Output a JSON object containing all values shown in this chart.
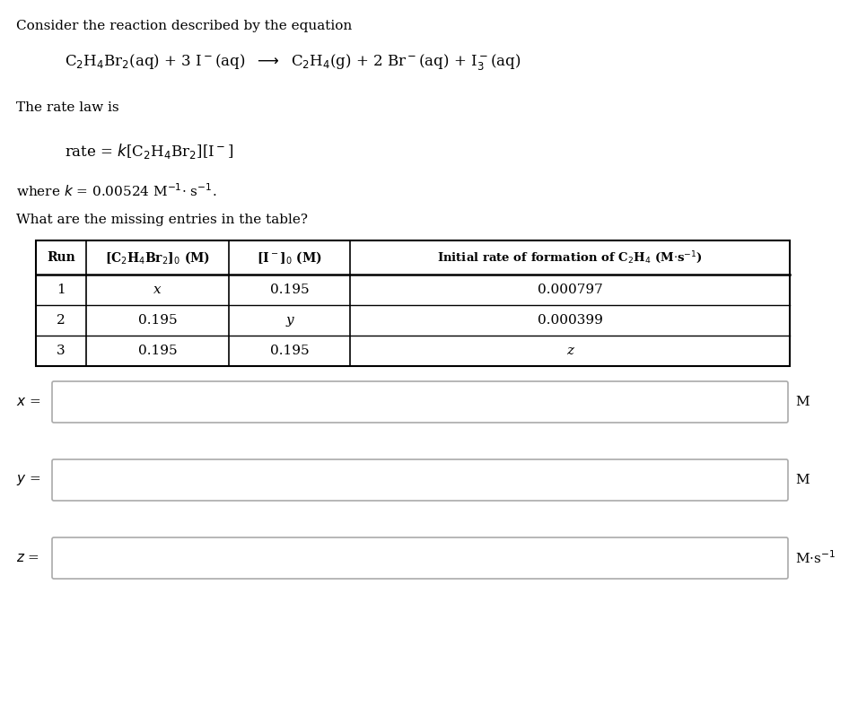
{
  "title_text": "Consider the reaction described by the equation",
  "rate_law_intro": "The rate law is",
  "question": "What are the missing entries in the table?",
  "bg_color": "#ffffff",
  "text_color": "#000000",
  "box_border_color": "#aaaaaa",
  "table_rows": [
    [
      "1",
      "x",
      "0.195",
      "0.000797"
    ],
    [
      "2",
      "0.195",
      "y",
      "0.000399"
    ],
    [
      "3",
      "0.195",
      "0.195",
      "z"
    ]
  ]
}
